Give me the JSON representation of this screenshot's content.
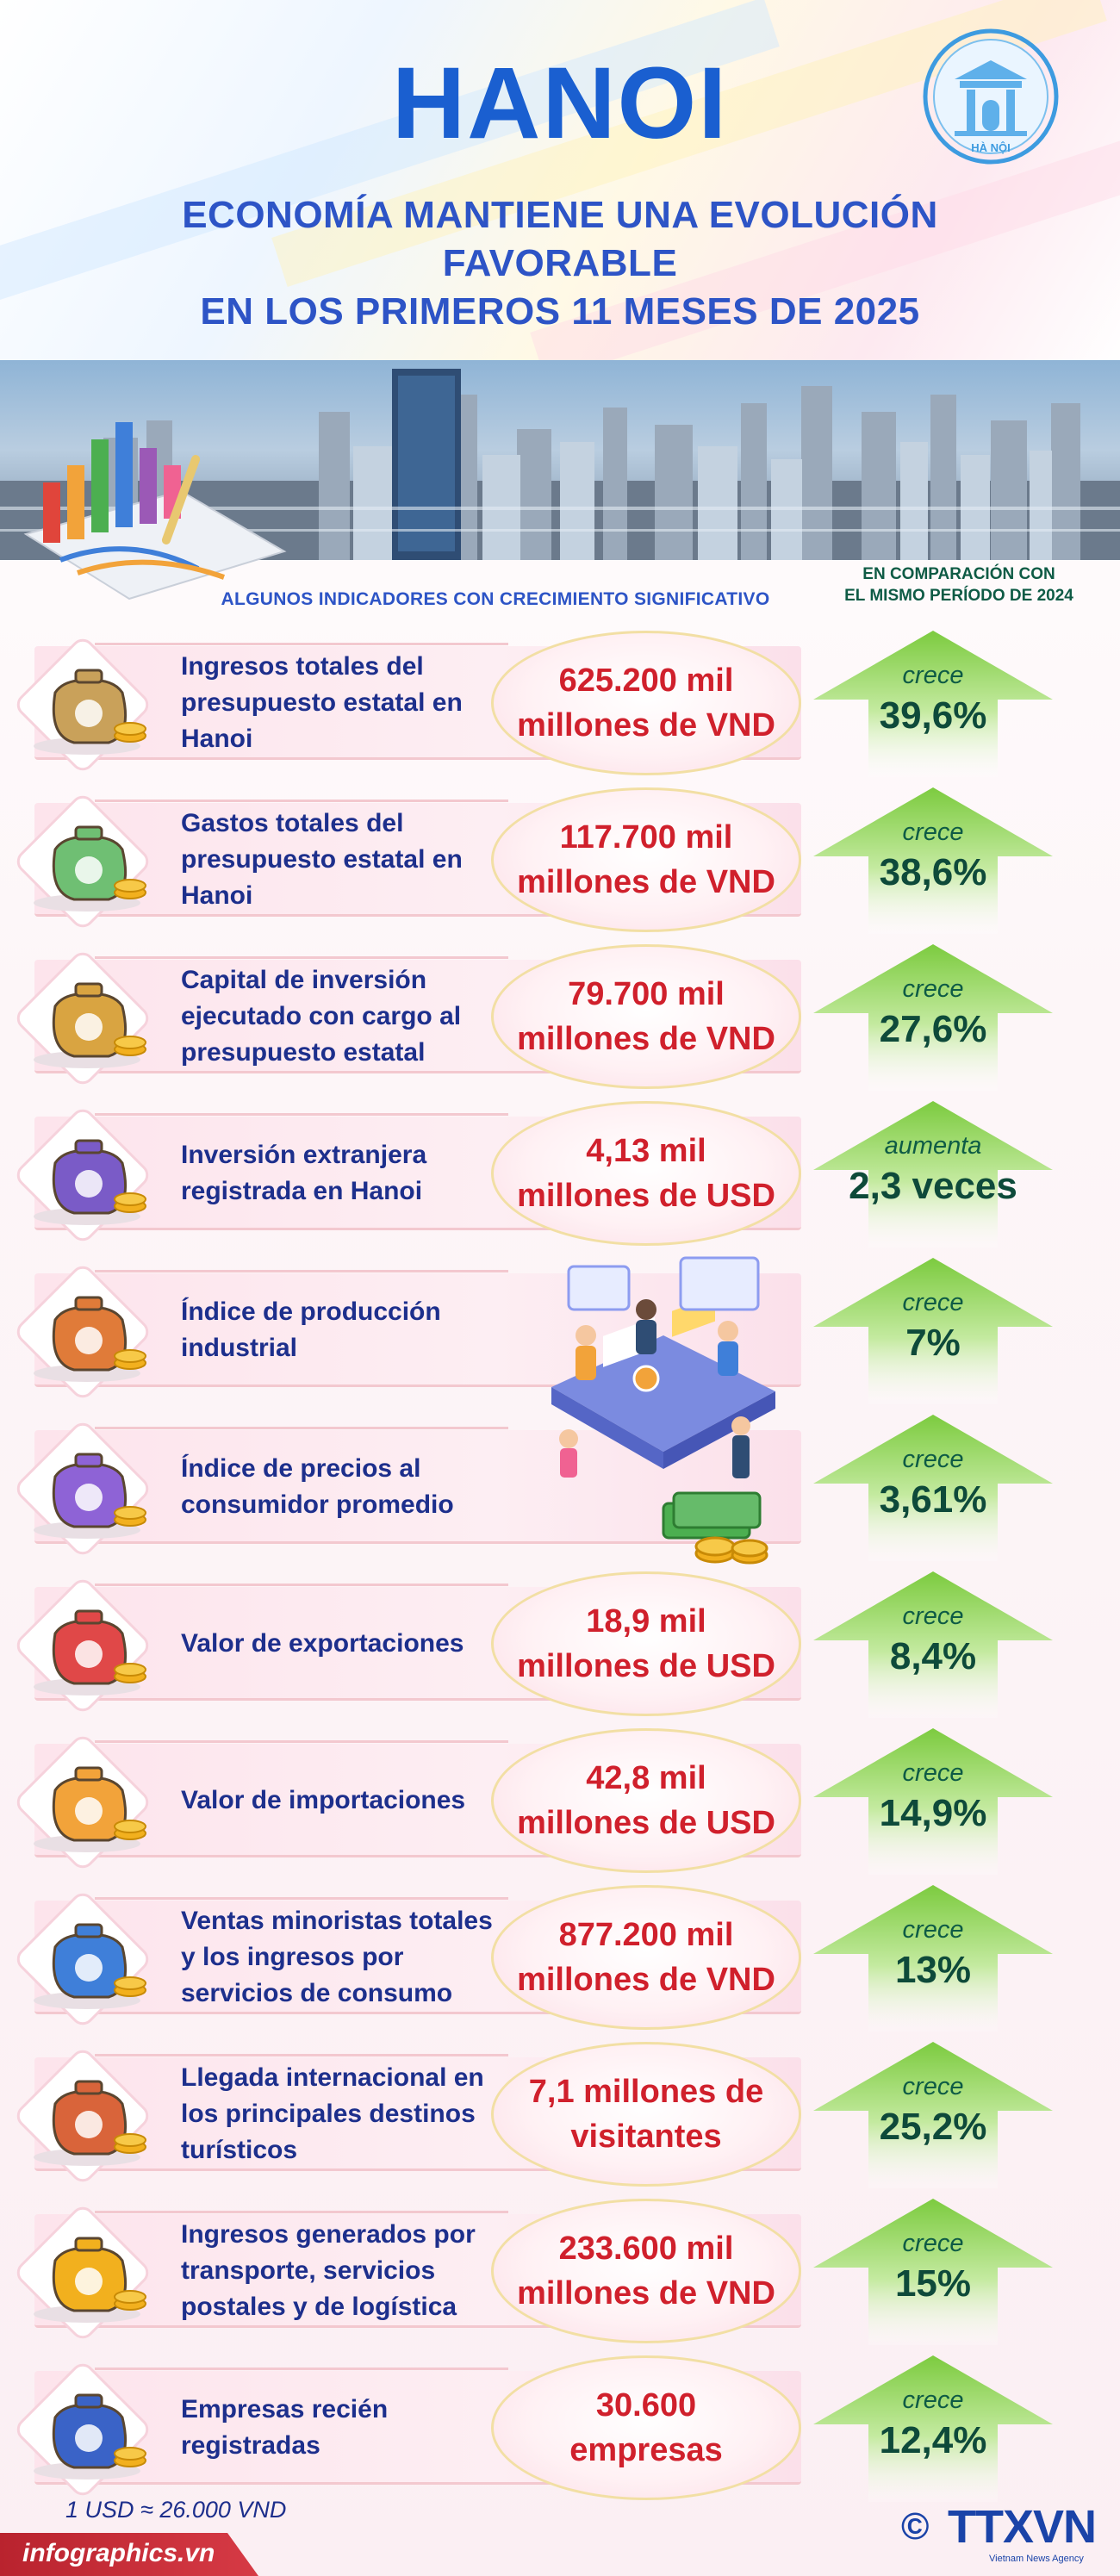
{
  "header": {
    "title": "HANOI",
    "subtitle_line1": "ECONOMÍA MANTIENE UNA EVOLUCIÓN FAVORABLE",
    "subtitle_line2": "EN LOS PRIMEROS 11 MESES DE 2025",
    "logo_text": "HÀ NỘI"
  },
  "section": {
    "indicators_heading": "ALGUNOS INDICADORES CON CRECIMIENTO SIGNIFICATIVO",
    "compare_line1": "EN COMPARACIÓN CON",
    "compare_line2": "EL MISMO PERÍODO DE 2024"
  },
  "rows": [
    {
      "label": "Ingresos totales del presupuesto estatal en Hanoi",
      "value_line1": "625.200 mil",
      "value_line2": "millones de VND",
      "change_word": "crece",
      "change": "39,6%",
      "icon": "money-bag-icon"
    },
    {
      "label": "Gastos totales del presupuesto estatal en Hanoi",
      "value_line1": "117.700 mil",
      "value_line2": "millones de VND",
      "change_word": "crece",
      "change": "38,6%",
      "icon": "cash-stack-icon"
    },
    {
      "label": "Capital de inversión ejecutado con cargo al presupuesto estatal",
      "value_line1": "79.700 mil",
      "value_line2": "millones de VND",
      "change_word": "crece",
      "change": "27,6%",
      "icon": "money-sack-icon"
    },
    {
      "label": "Inversión extranjera registrada en Hanoi",
      "value_line1": "4,13 mil",
      "value_line2": "millones de USD",
      "change_word": "aumenta",
      "change": "2,3 veces",
      "icon": "dollar-bag-icon"
    },
    {
      "label": "Índice de producción industrial",
      "value_line1": "",
      "value_line2": "",
      "change_word": "crece",
      "change": "7%",
      "icon": "robot-arm-icon"
    },
    {
      "label": "Índice de precios al consumidor promedio",
      "value_line1": "",
      "value_line2": "",
      "change_word": "crece",
      "change": "3,61%",
      "icon": "shopping-basket-icon"
    },
    {
      "label": "Valor de exportaciones",
      "value_line1": "18,9 mil",
      "value_line2": "millones de USD",
      "change_word": "crece",
      "change": "8,4%",
      "icon": "export-truck-icon"
    },
    {
      "label": "Valor de importaciones",
      "value_line1": "42,8 mil",
      "value_line2": "millones de USD",
      "change_word": "crece",
      "change": "14,9%",
      "icon": "import-truck-icon"
    },
    {
      "label": "Ventas minoristas totales y los ingresos por servicios de consumo",
      "value_line1": "877.200 mil",
      "value_line2": "millones de VND",
      "change_word": "crece",
      "change": "13%",
      "icon": "shop-phone-icon"
    },
    {
      "label": "Llegada internacional en los principales destinos turísticos",
      "value_line1": "7,1 millones de",
      "value_line2": "visitantes",
      "change_word": "crece",
      "change": "25,2%",
      "icon": "tourist-icon"
    },
    {
      "label": "Ingresos generados por transporte, servicios postales y de logística",
      "value_line1": "233.600 mil",
      "value_line2": "millones de VND",
      "change_word": "crece",
      "change": "15%",
      "icon": "delivery-truck-icon"
    },
    {
      "label": "Empresas recién registradas",
      "value_line1": "30.600",
      "value_line2": "empresas",
      "change_word": "crece",
      "change": "12,4%",
      "icon": "businessman-icon"
    }
  ],
  "footer": {
    "exchange_note": "1 USD ≈ 26.000 VND",
    "site": "infographics.vn",
    "agency": "TTXVN",
    "agency_sub": "Vietnam News Agency",
    "copyright": "©"
  },
  "colors": {
    "title_blue": "#1a5fd0",
    "value_red": "#d0202c",
    "label_navy": "#1d2f8c",
    "arrow_green": "#7ccb3f",
    "change_green": "#0e4a3a"
  }
}
